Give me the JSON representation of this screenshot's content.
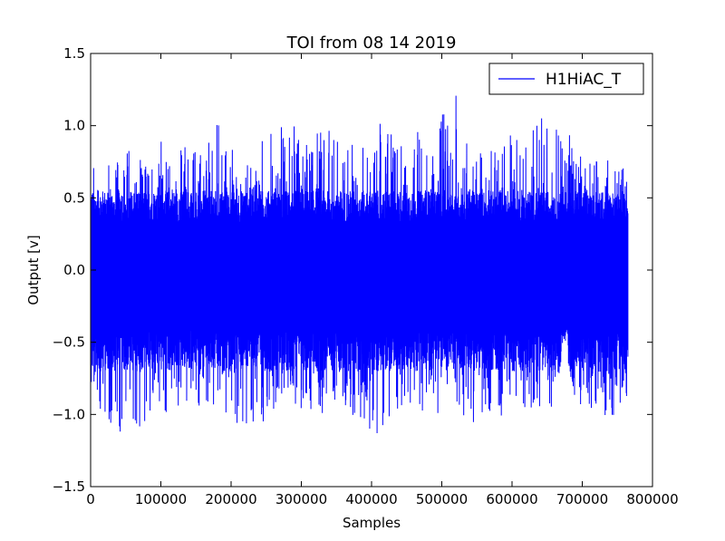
{
  "chart_data": {
    "type": "line",
    "title": "TOI from 08 14 2019",
    "xlabel": "Samples",
    "ylabel": "Output [v]",
    "xlim": [
      0,
      800000
    ],
    "ylim": [
      -1.5,
      1.5
    ],
    "xticks": [
      0,
      100000,
      200000,
      300000,
      400000,
      500000,
      600000,
      700000,
      800000
    ],
    "xtick_labels": [
      "0",
      "100000",
      "200000",
      "300000",
      "400000",
      "500000",
      "600000",
      "700000",
      "800000"
    ],
    "yticks": [
      -1.5,
      -1.0,
      -0.5,
      0.0,
      0.5,
      1.0,
      1.5
    ],
    "ytick_labels": [
      "−1.5",
      "−1.0",
      "−0.5",
      "0.0",
      "0.5",
      "1.0",
      "1.5"
    ],
    "grid": false,
    "legend": {
      "position": "top-right",
      "entries": [
        "H1HiAC_T"
      ]
    },
    "series": [
      {
        "name": "H1HiAC_T",
        "color": "#0000ff",
        "x_range": [
          0,
          765000
        ],
        "envelope_x": [
          0,
          20000,
          40000,
          60000,
          80000,
          100000,
          120000,
          140000,
          160000,
          180000,
          200000,
          220000,
          240000,
          260000,
          280000,
          300000,
          320000,
          340000,
          360000,
          380000,
          400000,
          420000,
          440000,
          460000,
          480000,
          500000,
          520000,
          540000,
          560000,
          580000,
          600000,
          620000,
          640000,
          660000,
          675000,
          690000,
          710000,
          730000,
          750000,
          765000
        ],
        "envelope_max": [
          0.68,
          1.04,
          0.8,
          0.85,
          0.72,
          0.92,
          0.83,
          0.9,
          0.78,
          1.03,
          0.85,
          0.75,
          0.92,
          1.05,
          1.1,
          0.9,
          0.95,
          1.0,
          0.85,
          0.93,
          1.05,
          1.0,
          1.15,
          0.95,
          0.98,
          1.15,
          1.26,
          0.88,
          0.84,
          0.93,
          0.95,
          0.88,
          1.07,
          0.91,
          1.24,
          0.84,
          0.75,
          0.77,
          0.8,
          0.65
        ],
        "envelope_min": [
          -0.92,
          -0.98,
          -1.2,
          -1.07,
          -1.27,
          -1.05,
          -0.95,
          -0.98,
          -0.96,
          -1.0,
          -1.0,
          -1.15,
          -1.08,
          -0.98,
          -0.92,
          -1.0,
          -1.02,
          -0.98,
          -1.0,
          -1.03,
          -1.18,
          -1.08,
          -0.95,
          -0.95,
          -1.01,
          -1.0,
          -0.93,
          -1.08,
          -1.05,
          -1.01,
          -1.0,
          -0.96,
          -0.98,
          -0.95,
          -0.45,
          -1.0,
          -0.95,
          -1.03,
          -1.0,
          -0.92
        ],
        "typical_max": 0.55,
        "typical_min": -0.7
      }
    ]
  }
}
